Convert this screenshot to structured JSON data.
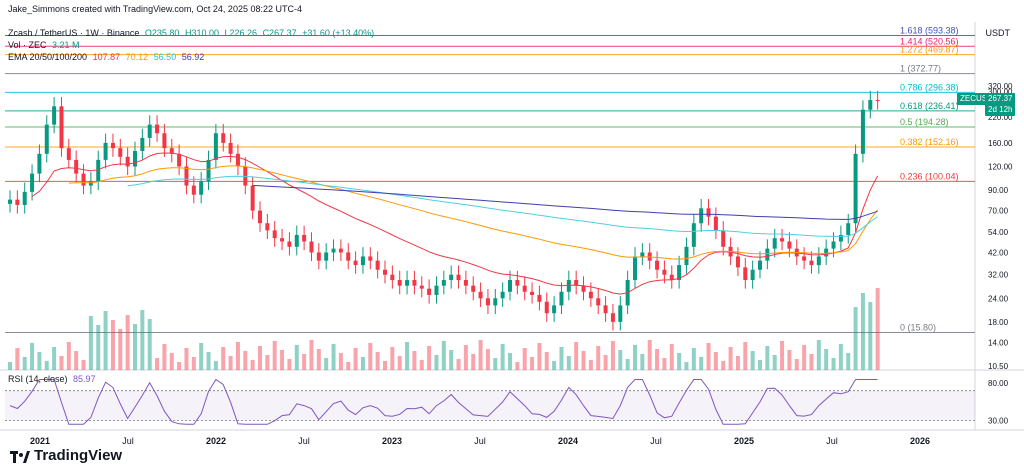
{
  "created_by": "Jake_Simmons created with TradingView.com, Oct 24, 2025 08:22 UTC-4",
  "symbol_line": {
    "name": "Zcash / TetherUS · 1W · Binance",
    "o": "O235.80",
    "h": "H310.00",
    "l": "L226.26",
    "c": "C267.37",
    "chg": "+31.60 (+13.40%)"
  },
  "vol_line": {
    "label": "Vol · ZEC",
    "value": "3.21 M"
  },
  "ema_line": {
    "label": "EMA 20/50/100/200",
    "v20": "107.87",
    "v50": "70.12",
    "v100": "56.50",
    "v200": "56.92"
  },
  "rsi_line": {
    "label": "RSI (14, close)",
    "value": "85.97"
  },
  "currency": "USDT",
  "price_tag": {
    "symbol": "ZECUSDT",
    "price": "267.37",
    "time": "2d 12h"
  },
  "brand": "TradingView",
  "colors": {
    "up": "#089981",
    "down": "#f23645",
    "ema20": "#f23645",
    "ema50": "#ff9800",
    "ema100": "#4dd0e1",
    "ema200": "#3f3fb0",
    "rsi": "#7e57c2"
  },
  "chart_data": {
    "type": "candlestick",
    "y_scale": "log",
    "ylim": [
      10,
      700
    ],
    "y_ticks": [
      "320.00",
      "300.00",
      "220.00",
      "160.00",
      "120.00",
      "90.00",
      "70.00",
      "54.00",
      "42.00",
      "32.00",
      "24.00",
      "18.00",
      "14.00",
      "10.50"
    ],
    "x_ticks": [
      "2021",
      "Jul",
      "2022",
      "Jul",
      "2023",
      "Jul",
      "2024",
      "Jul",
      "2025",
      "Jul",
      "2026"
    ],
    "fib_levels": [
      {
        "label": "1.618 (593.38)",
        "value": 593.38,
        "color": "#3f51b5"
      },
      {
        "label": "1.414 (520.56)",
        "value": 520.56,
        "color": "#e91e63"
      },
      {
        "label": "1.272 (469.87)",
        "value": 469.87,
        "color": "#ff9800"
      },
      {
        "label": "1 (372.77)",
        "value": 372.77,
        "color": "#787b86"
      },
      {
        "label": "0.786 (296.38)",
        "value": 296.38,
        "color": "#00bcd4"
      },
      {
        "label": "0.618 (236.41)",
        "value": 236.41,
        "color": "#089981"
      },
      {
        "label": "0.5 (194.28)",
        "value": 194.28,
        "color": "#4caf50"
      },
      {
        "label": "0.382 (152.16)",
        "value": 152.16,
        "color": "#ff9800"
      },
      {
        "label": "0.236 (100.04)",
        "value": 100.04,
        "color": "#f23645"
      },
      {
        "label": "0 (15.80)",
        "value": 15.8,
        "color": "#787b86"
      }
    ],
    "closes": [
      80,
      75,
      88,
      110,
      140,
      200,
      250,
      150,
      130,
      110,
      95,
      100,
      130,
      160,
      150,
      135,
      120,
      145,
      170,
      200,
      180,
      150,
      140,
      120,
      95,
      85,
      100,
      130,
      180,
      160,
      140,
      120,
      95,
      70,
      60,
      55,
      50,
      48,
      45,
      52,
      48,
      42,
      38,
      42,
      44,
      42,
      38,
      36,
      40,
      38,
      34,
      32,
      30,
      28,
      30,
      28,
      27,
      25,
      28,
      30,
      32,
      30,
      28,
      26,
      24,
      22,
      24,
      26,
      30,
      28,
      26,
      25,
      23,
      20,
      22,
      26,
      30,
      28,
      26,
      24,
      22,
      20,
      18,
      22,
      30,
      40,
      42,
      38,
      34,
      32,
      30,
      36,
      45,
      60,
      72,
      65,
      55,
      45,
      40,
      35,
      30,
      34,
      38,
      44,
      50,
      48,
      44,
      40,
      38,
      36,
      40,
      44,
      48,
      52,
      60,
      140,
      240,
      270,
      267
    ],
    "rsi_range": [
      30,
      80
    ]
  }
}
